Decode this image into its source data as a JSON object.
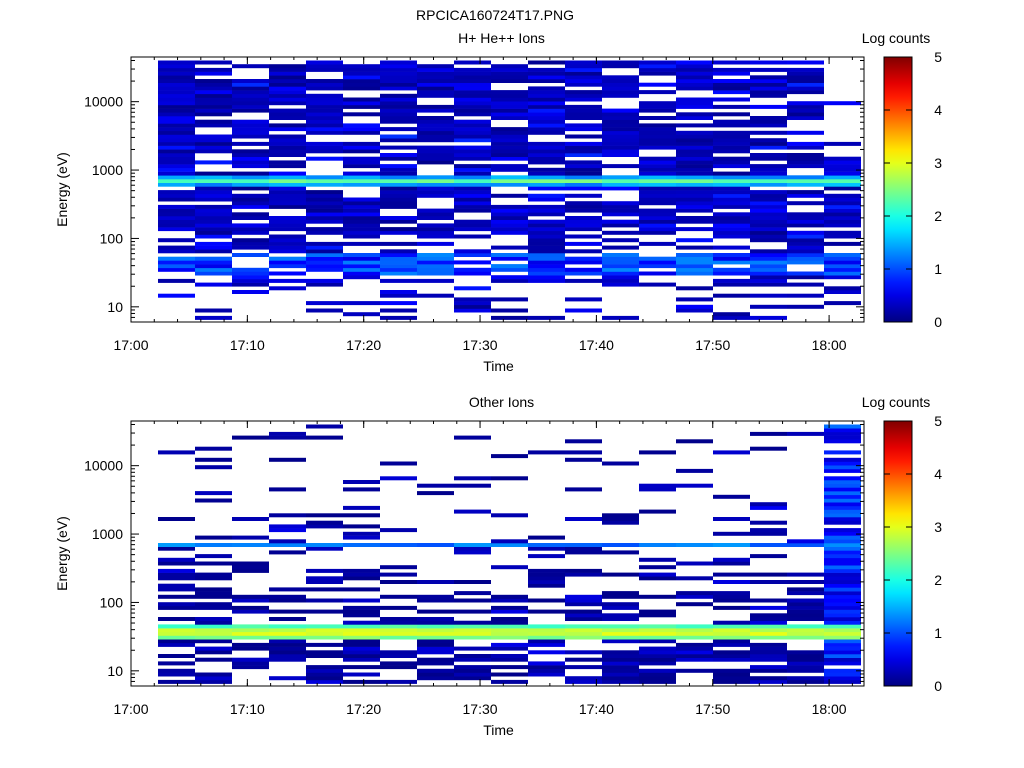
{
  "figure_title": "RPCICA160724T17.PNG",
  "chart_data": [
    {
      "type": "heatmap",
      "title": "H+ He++ Ions",
      "xlabel": "Time",
      "ylabel": "Energy (eV)",
      "y_scale": "log",
      "ylim": [
        6,
        45000
      ],
      "xlim": [
        "17:00",
        "18:03"
      ],
      "x_ticks": [
        "17:00",
        "17:10",
        "17:20",
        "17:30",
        "17:40",
        "17:50",
        "18:00"
      ],
      "y_ticks": [
        "10",
        "100",
        "1000",
        "10000"
      ],
      "colorbar": {
        "label": "Log counts",
        "range": [
          0,
          5
        ],
        "ticks": [
          "0",
          "1",
          "2",
          "3",
          "4",
          "5"
        ]
      },
      "features": [
        {
          "description": "H+ He++ Ions",
          "energy_eV": 700,
          "log_counts": 2.2
        },
        {
          "energy_range_eV": [
            30,
            60
          ],
          "log_counts": 0.8
        }
      ],
      "colormap": "jet"
    },
    {
      "type": "heatmap",
      "title": "Other Ions",
      "xlabel": "Time",
      "ylabel": "Energy (eV)",
      "y_scale": "log",
      "ylim": [
        6,
        45000
      ],
      "xlim": [
        "17:00",
        "18:03"
      ],
      "x_ticks": [
        "17:00",
        "17:10",
        "17:20",
        "17:30",
        "17:40",
        "17:50",
        "18:00"
      ],
      "y_ticks": [
        "10",
        "100",
        "1000",
        "10000"
      ],
      "colorbar": {
        "label": "Log counts",
        "range": [
          0,
          5
        ],
        "ticks": [
          "0",
          "1",
          "2",
          "3",
          "4",
          "5"
        ]
      },
      "features": [
        {
          "energy_range_eV": [
            28,
            45
          ],
          "log_counts": 2.8
        },
        {
          "energy_eV": 700,
          "log_counts": 1.0
        }
      ],
      "colormap": "jet"
    }
  ]
}
